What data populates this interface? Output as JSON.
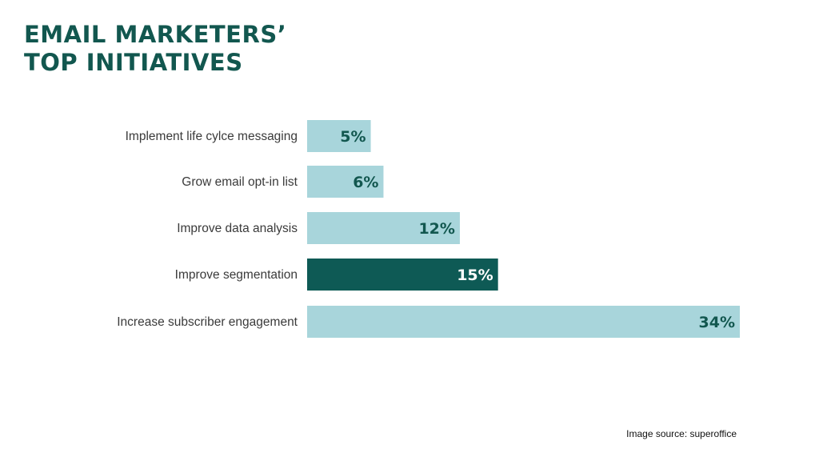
{
  "title_lines": [
    "EMAIL MARKETERS’",
    "TOP INITIATIVES"
  ],
  "source": "Image source: superoffice",
  "colors": {
    "title": "#12574f",
    "bar_default": "#a8d5db",
    "bar_highlight": "#0e5a55",
    "label_on_light": "#12574f",
    "label_on_dark": "#ffffff"
  },
  "chart_data": {
    "type": "bar",
    "orientation": "horizontal",
    "categories": [
      "Implement life cylce messaging",
      "Grow email opt-in list",
      "Improve data analysis",
      "Improve segmentation",
      "Increase subscriber engagement"
    ],
    "values": [
      5,
      6,
      12,
      15,
      34
    ],
    "value_labels": [
      "5%",
      "6%",
      "12%",
      "15%",
      "34%"
    ],
    "highlighted": [
      "Improve segmentation"
    ],
    "title": "EMAIL MARKETERS’ TOP INITIATIVES",
    "xlabel": "",
    "ylabel": "",
    "xlim": [
      0,
      34
    ],
    "grid": false,
    "legend": "none"
  }
}
